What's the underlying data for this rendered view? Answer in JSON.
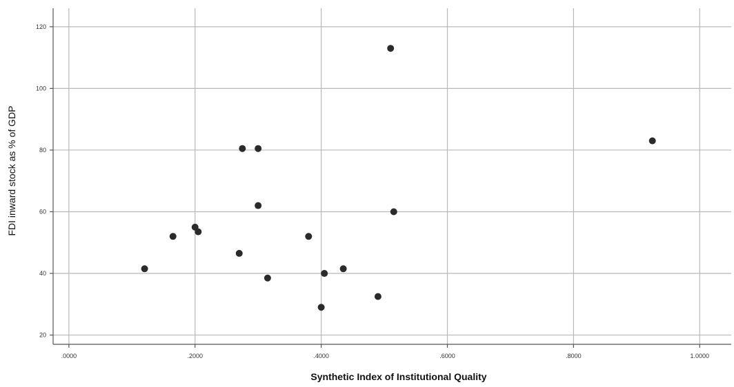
{
  "chart_data": {
    "type": "scatter",
    "title": "",
    "xlabel": "Synthetic Index of Institutional Quality",
    "ylabel": "FDI inward stock as % of GDP",
    "xlim": [
      -0.025,
      1.05
    ],
    "ylim": [
      17,
      126
    ],
    "x_ticks": [
      0.0,
      0.2,
      0.4,
      0.6,
      0.8,
      1.0
    ],
    "x_tick_labels": [
      ".0000",
      ".2000",
      ".4000",
      ".6000",
      ".8000",
      "1.0000"
    ],
    "y_ticks": [
      20,
      40,
      60,
      80,
      100,
      120
    ],
    "y_tick_labels": [
      "20",
      "40",
      "60",
      "80",
      "100",
      "120"
    ],
    "grid": true,
    "points": [
      {
        "x": 0.12,
        "y": 41.5
      },
      {
        "x": 0.165,
        "y": 52
      },
      {
        "x": 0.2,
        "y": 55
      },
      {
        "x": 0.205,
        "y": 53.5
      },
      {
        "x": 0.27,
        "y": 46.5
      },
      {
        "x": 0.275,
        "y": 80.5
      },
      {
        "x": 0.3,
        "y": 80.5
      },
      {
        "x": 0.3,
        "y": 62
      },
      {
        "x": 0.315,
        "y": 38.5
      },
      {
        "x": 0.38,
        "y": 52
      },
      {
        "x": 0.4,
        "y": 29
      },
      {
        "x": 0.405,
        "y": 40
      },
      {
        "x": 0.435,
        "y": 41.5
      },
      {
        "x": 0.49,
        "y": 32.5
      },
      {
        "x": 0.51,
        "y": 113
      },
      {
        "x": 0.515,
        "y": 60
      },
      {
        "x": 0.925,
        "y": 83
      }
    ]
  }
}
